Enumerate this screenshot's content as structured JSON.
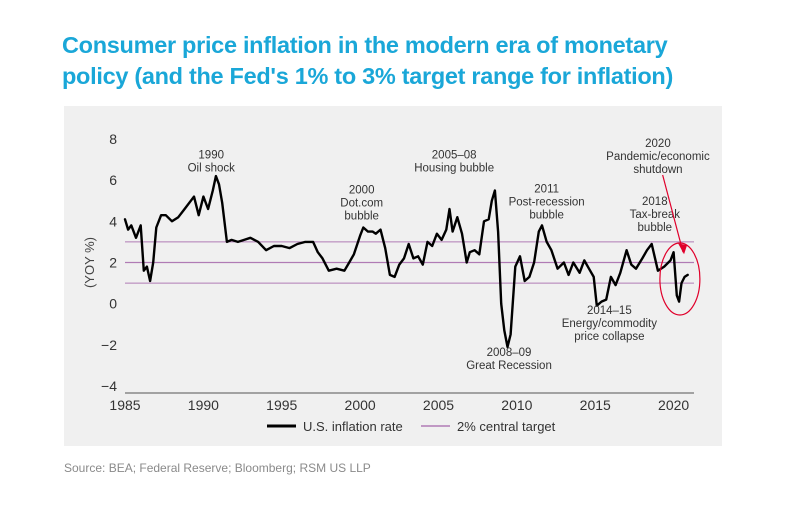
{
  "title": {
    "line1": "Consumer price inflation in the modern era of monetary",
    "line2": "policy (and the Fed's 1% to 3% target range for inflation)"
  },
  "source": "Source: BEA; Federal Reserve;  Bloomberg; RSM US LLP",
  "colors": {
    "title": "#1aa7d8",
    "series": "#000000",
    "target": "#b07bb5",
    "highlight": "#e0002b",
    "panel": "#f0f0f0"
  },
  "chart_data": {
    "type": "line",
    "title": "",
    "xlabel": "",
    "ylabel": "(YOY %)",
    "xlim": [
      1985,
      2021.3
    ],
    "ylim": [
      -4,
      8
    ],
    "xticks": [
      1985,
      1990,
      1995,
      2000,
      2005,
      2010,
      2015,
      2020
    ],
    "yticks": [
      -4,
      -2,
      0,
      2,
      4,
      6,
      8
    ],
    "grid": false,
    "legend": "bottom",
    "series": [
      {
        "name": "U.S. inflation rate",
        "x": [
          1985.0,
          1985.2,
          1985.4,
          1985.7,
          1986.0,
          1986.2,
          1986.4,
          1986.6,
          1986.8,
          1987.0,
          1987.3,
          1987.6,
          1988.0,
          1988.4,
          1988.8,
          1989.2,
          1989.4,
          1989.7,
          1990.0,
          1990.3,
          1990.6,
          1990.8,
          1991.0,
          1991.2,
          1991.5,
          1991.8,
          1992.2,
          1992.6,
          1993.0,
          1993.5,
          1994.0,
          1994.5,
          1995.0,
          1995.5,
          1996.0,
          1996.5,
          1997.0,
          1997.3,
          1997.6,
          1998.0,
          1998.5,
          1999.0,
          1999.3,
          1999.6,
          2000.0,
          2000.2,
          2000.5,
          2000.8,
          2001.0,
          2001.3,
          2001.6,
          2001.9,
          2002.2,
          2002.5,
          2002.8,
          2003.1,
          2003.4,
          2003.7,
          2004.0,
          2004.3,
          2004.6,
          2004.9,
          2005.2,
          2005.5,
          2005.7,
          2005.9,
          2006.2,
          2006.5,
          2006.8,
          2007.0,
          2007.3,
          2007.6,
          2007.9,
          2008.2,
          2008.4,
          2008.6,
          2008.8,
          2009.0,
          2009.2,
          2009.4,
          2009.6,
          2009.9,
          2010.2,
          2010.5,
          2010.8,
          2011.1,
          2011.4,
          2011.6,
          2011.9,
          2012.2,
          2012.6,
          2013.0,
          2013.3,
          2013.6,
          2014.0,
          2014.3,
          2014.6,
          2014.9,
          2015.1,
          2015.4,
          2015.7,
          2016.0,
          2016.3,
          2016.6,
          2017.0,
          2017.3,
          2017.6,
          2018.0,
          2018.3,
          2018.6,
          2019.0,
          2019.4,
          2019.8,
          2020.0,
          2020.2,
          2020.35,
          2020.5,
          2020.7,
          2020.9
        ],
        "values": [
          4.1,
          3.6,
          3.8,
          3.2,
          3.8,
          1.6,
          1.8,
          1.1,
          2.0,
          3.7,
          4.3,
          4.3,
          4.0,
          4.2,
          4.6,
          5.0,
          5.2,
          4.3,
          5.2,
          4.6,
          5.5,
          6.2,
          5.8,
          4.9,
          3.0,
          3.1,
          3.0,
          3.1,
          3.2,
          3.0,
          2.6,
          2.8,
          2.8,
          2.7,
          2.9,
          3.0,
          3.0,
          2.5,
          2.2,
          1.6,
          1.7,
          1.6,
          2.0,
          2.4,
          3.3,
          3.7,
          3.5,
          3.5,
          3.4,
          3.6,
          2.7,
          1.4,
          1.3,
          1.9,
          2.2,
          2.9,
          2.2,
          2.3,
          1.9,
          3.0,
          2.8,
          3.4,
          3.1,
          3.6,
          4.6,
          3.5,
          4.2,
          3.4,
          2.0,
          2.5,
          2.6,
          2.4,
          4.0,
          4.1,
          5.0,
          5.5,
          3.5,
          0.0,
          -1.3,
          -2.1,
          -1.5,
          1.8,
          2.3,
          1.1,
          1.3,
          2.0,
          3.5,
          3.8,
          3.0,
          2.6,
          1.7,
          2.0,
          1.4,
          2.0,
          1.5,
          2.1,
          1.7,
          1.3,
          -0.1,
          0.1,
          0.2,
          1.3,
          0.9,
          1.5,
          2.6,
          1.9,
          1.7,
          2.2,
          2.6,
          2.9,
          1.6,
          1.8,
          2.1,
          2.5,
          0.4,
          0.1,
          1.0,
          1.3,
          1.4
        ]
      },
      {
        "name": "2% central target",
        "x": [
          1985,
          2021.3
        ],
        "values": [
          2,
          2
        ]
      }
    ],
    "reference_band": [
      1,
      3
    ],
    "annotations": [
      {
        "lines": [
          "1990",
          "Oil shock"
        ],
        "x": 1990.5,
        "y": 7.05
      },
      {
        "lines": [
          "2000",
          "Dot.com",
          "bubble"
        ],
        "x": 2000.1,
        "y": 5.35
      },
      {
        "lines": [
          "2005–08",
          "Housing bubble"
        ],
        "x": 2006.0,
        "y": 7.05
      },
      {
        "lines": [
          "2011",
          "Post-recession",
          "bubble"
        ],
        "x": 2011.9,
        "y": 5.4
      },
      {
        "lines": [
          "2020",
          "Pandemic/economic",
          "shutdown"
        ],
        "x": 2019.0,
        "y": 7.6
      },
      {
        "lines": [
          "2018",
          "Tax-break",
          "bubble"
        ],
        "x": 2018.8,
        "y": 4.8
      },
      {
        "lines": [
          "2008–09",
          "Great Recession"
        ],
        "x": 2009.5,
        "y": -2.55
      },
      {
        "lines": [
          "2014–15",
          "Energy/commodity",
          "price collapse"
        ],
        "x": 2015.9,
        "y": -0.5
      }
    ]
  }
}
